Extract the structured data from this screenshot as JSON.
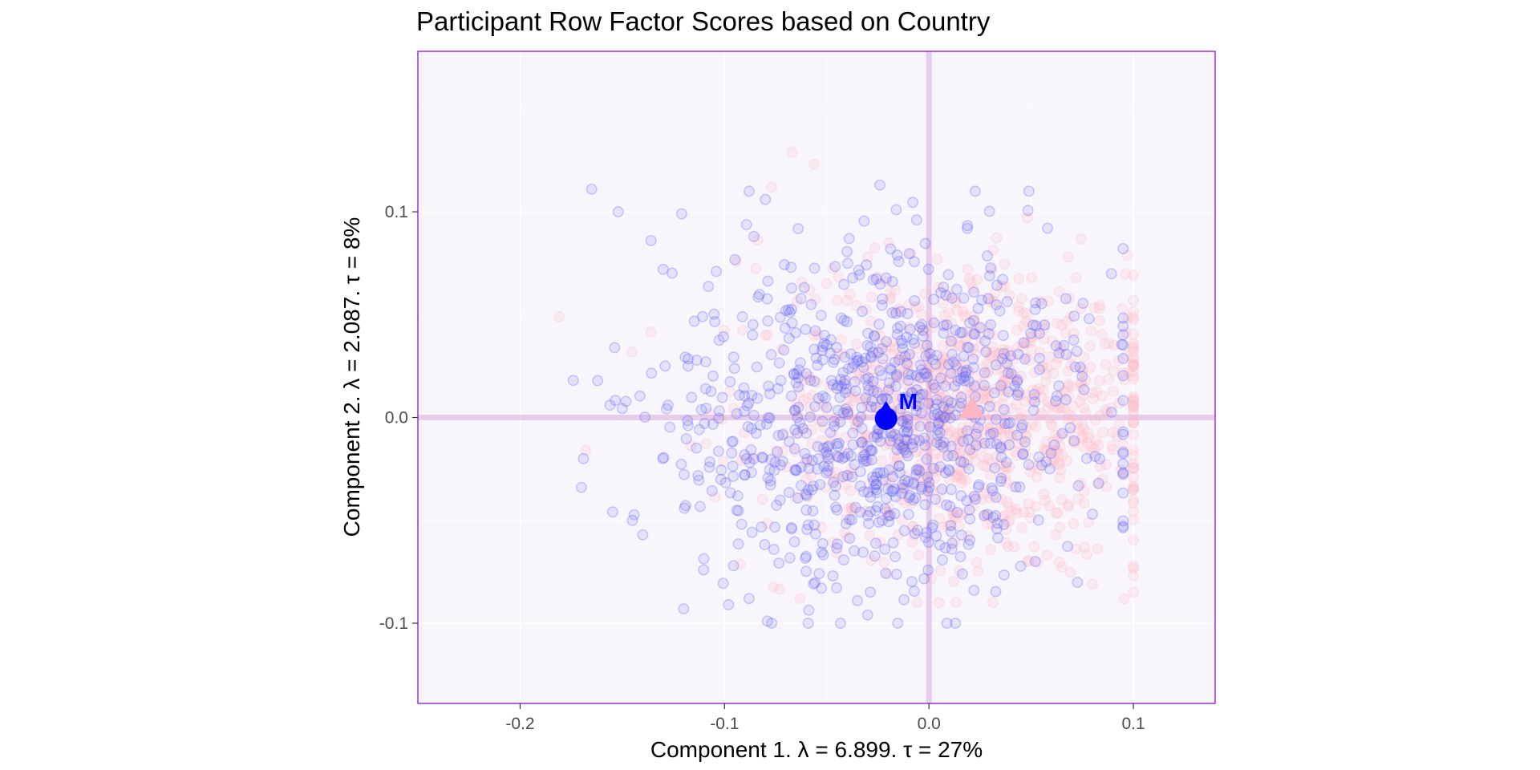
{
  "chart_data": {
    "type": "scatter",
    "title": "Participant Row Factor Scores based on Country",
    "xlabel": "Component 1.   λ = 6.899.  τ = 27%",
    "ylabel": "Component 2.   λ = 2.087.  τ = 8%",
    "xlim": [
      -0.25,
      0.14
    ],
    "ylim": [
      -0.139,
      0.178
    ],
    "x_ticks": [
      {
        "value": -0.2,
        "label": "-0.2"
      },
      {
        "value": -0.1,
        "label": "-0.1"
      },
      {
        "value": 0.0,
        "label": "0.0"
      },
      {
        "value": 0.1,
        "label": "0.1"
      }
    ],
    "y_ticks": [
      {
        "value": -0.1,
        "label": "-0.1"
      },
      {
        "value": 0.0,
        "label": "0.0"
      },
      {
        "value": 0.1,
        "label": "0.1"
      }
    ],
    "grid": true,
    "legend": "none",
    "colors": {
      "panel_background": "#f8f5fc",
      "panel_border": "#9933cc",
      "origin_lines": "#e6cdea",
      "grid": "#ffffff",
      "series_blue": "#5b5bf0",
      "series_pink": "#ffb6c1",
      "mean_blue": "#0000ff",
      "mean_pink": "#ffb6c1"
    },
    "series": [
      {
        "group": "blue",
        "point_shape": "circle",
        "point_count": 900,
        "x_mean": -0.021,
        "x_sd": 0.05,
        "y_mean": 0.0,
        "y_sd": 0.04,
        "x_range": [
          -0.18,
          0.095
        ],
        "y_range": [
          -0.1,
          0.11
        ],
        "sample_points": [
          [
            -0.165,
            0.111
          ],
          [
            -0.152,
            0.1
          ],
          [
            -0.121,
            0.099
          ],
          [
            -0.08,
            0.106
          ],
          [
            -0.024,
            0.113
          ],
          [
            -0.016,
            0.101
          ],
          [
            -0.006,
            0.096
          ],
          [
            -0.174,
            0.018
          ],
          [
            -0.169,
            -0.02
          ],
          [
            -0.17,
            -0.034
          ],
          [
            -0.156,
            0.006
          ],
          [
            -0.136,
            0.086
          ],
          [
            -0.13,
            0.072
          ],
          [
            -0.104,
            0.071
          ],
          [
            -0.079,
            -0.099
          ],
          [
            -0.035,
            -0.089
          ],
          [
            -0.03,
            -0.096
          ],
          [
            -0.145,
            -0.05
          ],
          [
            -0.14,
            -0.057
          ],
          [
            -0.12,
            -0.093
          ],
          [
            -0.098,
            -0.091
          ],
          [
            -0.088,
            -0.088
          ],
          [
            -0.047,
            -0.077
          ],
          [
            0.022,
            -0.084
          ],
          [
            0.052,
            -0.07
          ],
          [
            0.058,
            0.092
          ],
          [
            0.08,
            -0.047
          ],
          [
            0.083,
            -0.032
          ],
          [
            0.095,
            -0.007
          ],
          [
            0.075,
            0.02
          ],
          [
            -0.07,
            0.052
          ],
          [
            -0.052,
            0.028
          ],
          [
            -0.03,
            -0.014
          ],
          [
            -0.01,
            0.018
          ],
          [
            0.01,
            -0.026
          ],
          [
            0.032,
            0.012
          ],
          [
            0.046,
            -0.018
          ],
          [
            0.062,
            0.008
          ],
          [
            -0.09,
            -0.028
          ],
          [
            -0.06,
            -0.045
          ],
          [
            -0.05,
            0.005
          ],
          [
            0.02,
            0.046
          ],
          [
            0.04,
            0.03
          ],
          [
            0.066,
            0.035
          ],
          [
            -0.012,
            -0.055
          ]
        ]
      },
      {
        "group": "pink",
        "point_shape": "circle",
        "point_count": 900,
        "x_mean": 0.021,
        "x_sd": 0.05,
        "y_mean": 0.0,
        "y_sd": 0.035,
        "x_range": [
          -0.18,
          0.1
        ],
        "y_range": [
          -0.09,
          0.13
        ],
        "sample_points": [
          [
            -0.067,
            0.129
          ],
          [
            -0.077,
            0.112
          ],
          [
            -0.03,
            0.078
          ],
          [
            0.004,
            0.077
          ],
          [
            0.048,
            0.097
          ],
          [
            0.068,
            0.078
          ],
          [
            0.072,
            0.068
          ],
          [
            -0.181,
            0.049
          ],
          [
            -0.168,
            -0.016
          ],
          [
            -0.063,
            -0.088
          ],
          [
            0.062,
            -0.057
          ],
          [
            0.078,
            -0.051
          ],
          [
            0.095,
            -0.028
          ],
          [
            0.098,
            0.022
          ],
          [
            0.088,
            0.036
          ],
          [
            0.07,
            0.0
          ],
          [
            0.075,
            -0.01
          ],
          [
            0.08,
            0.012
          ],
          [
            0.055,
            0.002
          ],
          [
            0.06,
            -0.02
          ],
          [
            0.045,
            0.02
          ],
          [
            0.03,
            -0.005
          ],
          [
            0.02,
            0.01
          ],
          [
            0.01,
            -0.03
          ],
          [
            -0.01,
            0.03
          ],
          [
            -0.04,
            0.005
          ],
          [
            -0.06,
            -0.03
          ],
          [
            -0.08,
            0.04
          ],
          [
            0.085,
            -0.03
          ],
          [
            0.065,
            0.045
          ]
        ]
      }
    ],
    "means": [
      {
        "group": "blue",
        "label": "M",
        "x": -0.021,
        "y": 0.001,
        "shape": "triangle"
      },
      {
        "group": "pink",
        "label": "",
        "x": 0.021,
        "y": 0.003,
        "shape": "triangle"
      }
    ]
  }
}
